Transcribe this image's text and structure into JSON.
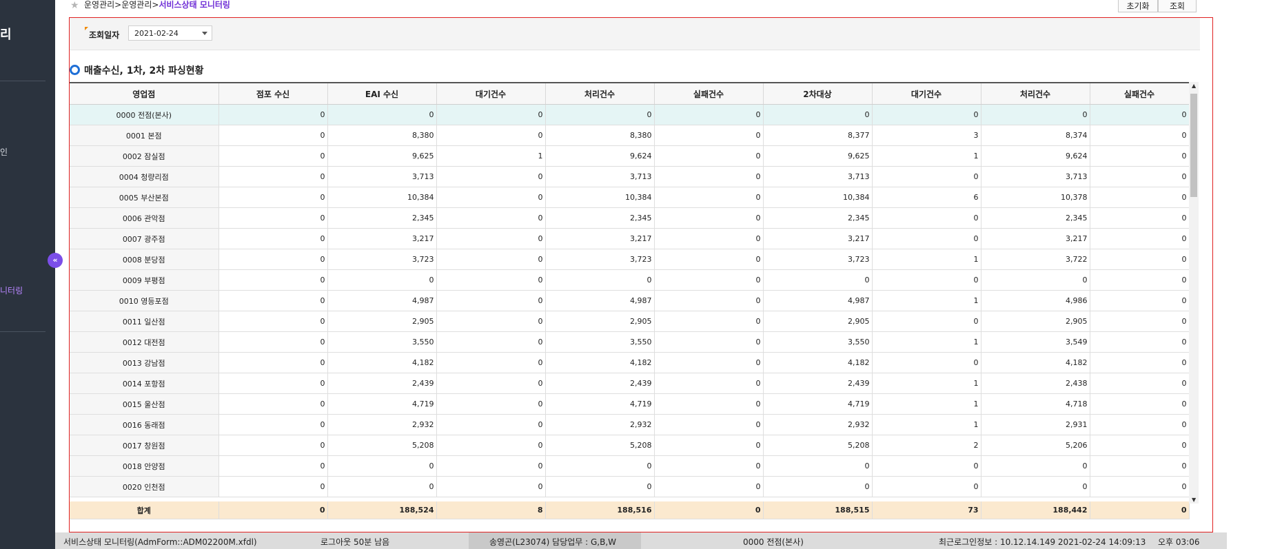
{
  "sidebar": {
    "title": "리",
    "item_1": "인",
    "item_active": "니터링",
    "collapse_icon": "«"
  },
  "breadcrumb": {
    "path": "운영관리>운영관리>",
    "current": "서비스상태 모니터링"
  },
  "toolbar": {
    "reset_label": "초기화",
    "search_label": "조회"
  },
  "filter": {
    "date_label": "조회일자",
    "date_value": "2021-02-24"
  },
  "section_title": "매출수신, 1차, 2차 파싱현황",
  "grid": {
    "columns": [
      "영업점",
      "점포 수신",
      "EAI 수신",
      "대기건수",
      "처리건수",
      "실패건수",
      "2차대상",
      "대기건수",
      "처리건수",
      "실패건수"
    ],
    "rows": [
      [
        "0000 전점(본사)",
        "0",
        "0",
        "0",
        "0",
        "0",
        "0",
        "0",
        "0",
        "0"
      ],
      [
        "0001 본점",
        "0",
        "8,380",
        "0",
        "8,380",
        "0",
        "8,377",
        "3",
        "8,374",
        "0"
      ],
      [
        "0002 잠실점",
        "0",
        "9,625",
        "1",
        "9,624",
        "0",
        "9,625",
        "1",
        "9,624",
        "0"
      ],
      [
        "0004 청량리점",
        "0",
        "3,713",
        "0",
        "3,713",
        "0",
        "3,713",
        "0",
        "3,713",
        "0"
      ],
      [
        "0005 부산본점",
        "0",
        "10,384",
        "0",
        "10,384",
        "0",
        "10,384",
        "6",
        "10,378",
        "0"
      ],
      [
        "0006 관악점",
        "0",
        "2,345",
        "0",
        "2,345",
        "0",
        "2,345",
        "0",
        "2,345",
        "0"
      ],
      [
        "0007 광주점",
        "0",
        "3,217",
        "0",
        "3,217",
        "0",
        "3,217",
        "0",
        "3,217",
        "0"
      ],
      [
        "0008 분당점",
        "0",
        "3,723",
        "0",
        "3,723",
        "0",
        "3,723",
        "1",
        "3,722",
        "0"
      ],
      [
        "0009 부평점",
        "0",
        "0",
        "0",
        "0",
        "0",
        "0",
        "0",
        "0",
        "0"
      ],
      [
        "0010 영등포점",
        "0",
        "4,987",
        "0",
        "4,987",
        "0",
        "4,987",
        "1",
        "4,986",
        "0"
      ],
      [
        "0011 일산점",
        "0",
        "2,905",
        "0",
        "2,905",
        "0",
        "2,905",
        "0",
        "2,905",
        "0"
      ],
      [
        "0012 대전점",
        "0",
        "3,550",
        "0",
        "3,550",
        "0",
        "3,550",
        "1",
        "3,549",
        "0"
      ],
      [
        "0013 강남점",
        "0",
        "4,182",
        "0",
        "4,182",
        "0",
        "4,182",
        "0",
        "4,182",
        "0"
      ],
      [
        "0014 포항점",
        "0",
        "2,439",
        "0",
        "2,439",
        "0",
        "2,439",
        "1",
        "2,438",
        "0"
      ],
      [
        "0015 울산점",
        "0",
        "4,719",
        "0",
        "4,719",
        "0",
        "4,719",
        "1",
        "4,718",
        "0"
      ],
      [
        "0016 동래점",
        "0",
        "2,932",
        "0",
        "2,932",
        "0",
        "2,932",
        "1",
        "2,931",
        "0"
      ],
      [
        "0017 창원점",
        "0",
        "5,208",
        "0",
        "5,208",
        "0",
        "5,208",
        "2",
        "5,206",
        "0"
      ],
      [
        "0018 안양점",
        "0",
        "0",
        "0",
        "0",
        "0",
        "0",
        "0",
        "0",
        "0"
      ],
      [
        "0020 인천점",
        "0",
        "0",
        "0",
        "0",
        "0",
        "0",
        "0",
        "0",
        "0"
      ]
    ],
    "total": [
      "합계",
      "0",
      "188,524",
      "8",
      "188,516",
      "0",
      "188,515",
      "73",
      "188,442",
      "0"
    ]
  },
  "statusbar": {
    "screen": "서비스상태 모니터링(AdmForm::ADM02200M.xfdl)",
    "logout": "로그아웃 50분 남음",
    "user": "송영곤(L23074) 담당업무 : G,B,W",
    "store": "0000 전점(본사)",
    "last_login": "최근로그인정보 : 10.12.14.149 2021-02-24 14:09:13",
    "clock": "오후 03:06"
  },
  "icons": {
    "star": "star-icon",
    "section": "radio-bullet-icon",
    "dropdown": "chevron-down-icon"
  },
  "colors": {
    "accent": "#6f2fd6",
    "frame": "#e02020",
    "total_row": "#fbe9cf",
    "first_row": "#e5f5f5"
  }
}
